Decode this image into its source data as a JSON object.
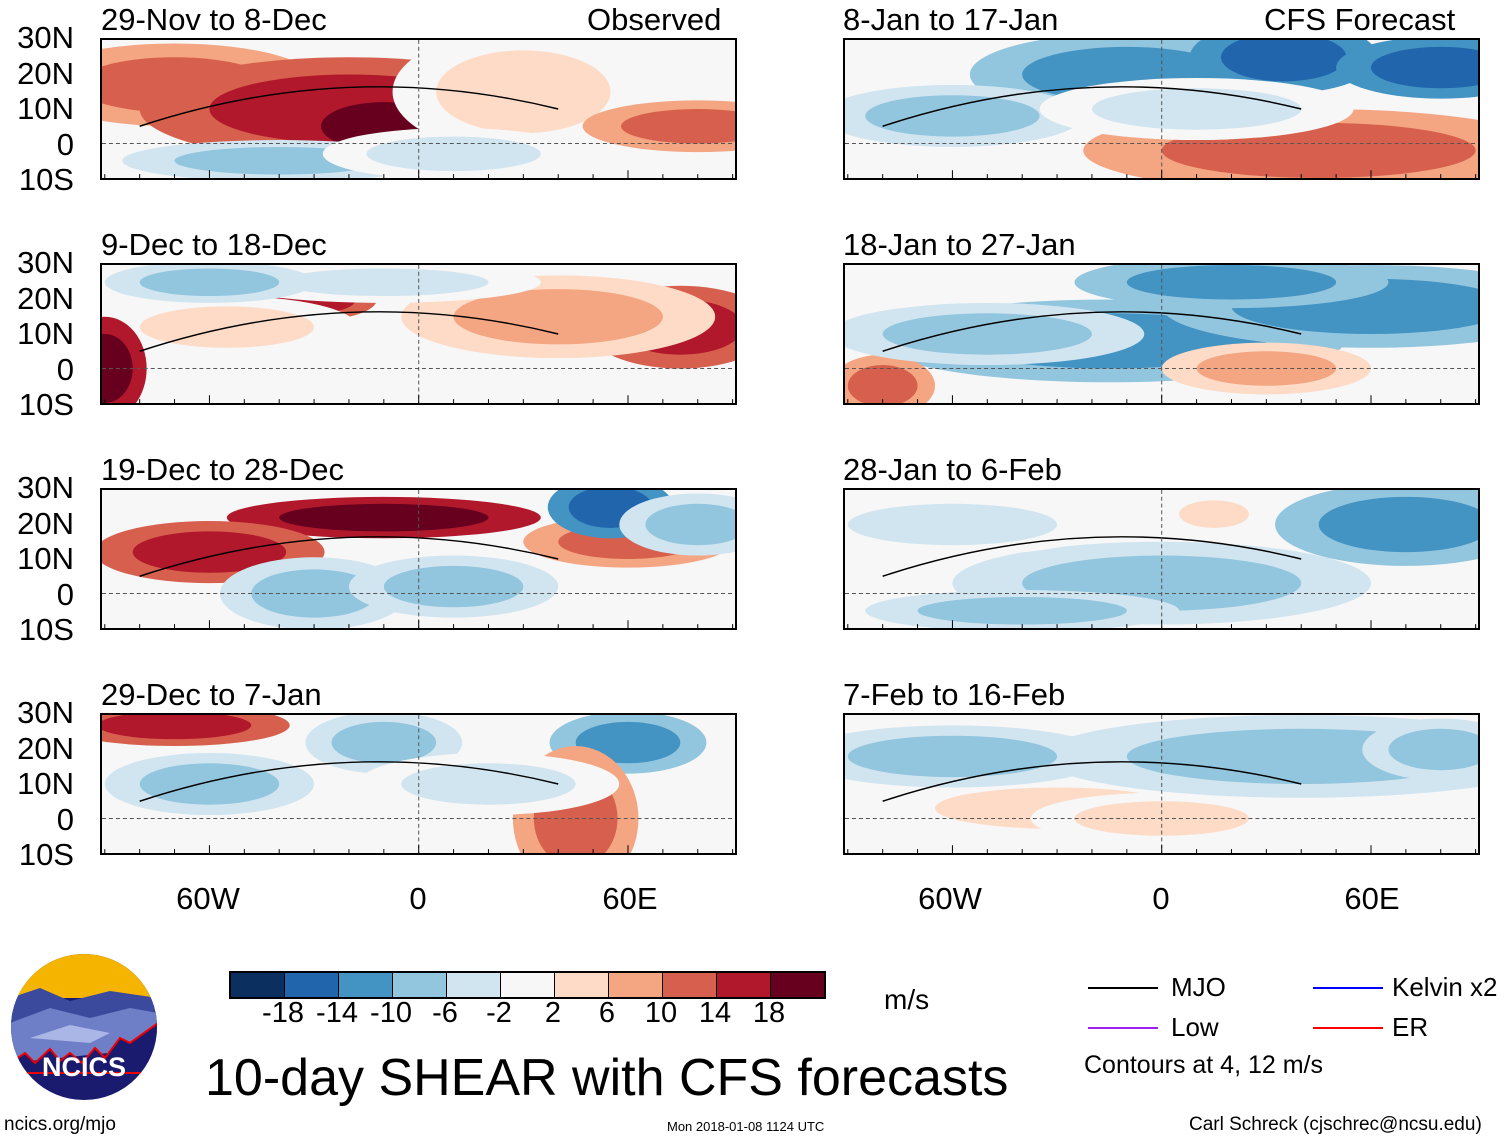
{
  "header": {
    "left_label": "Observed",
    "right_label": "CFS Forecast"
  },
  "panels_observed": [
    {
      "title": "29-Nov to 8-Dec"
    },
    {
      "title": "9-Dec to 18-Dec"
    },
    {
      "title": "19-Dec to 28-Dec"
    },
    {
      "title": "29-Dec to 7-Jan"
    }
  ],
  "panels_forecast": [
    {
      "title": "8-Jan to 17-Jan"
    },
    {
      "title": "18-Jan to 27-Jan"
    },
    {
      "title": "28-Jan to 6-Feb"
    },
    {
      "title": "7-Feb to 16-Feb"
    }
  ],
  "lat_labels": [
    "30N",
    "20N",
    "10N",
    "0",
    "10S"
  ],
  "lon_labels": [
    "60W",
    "0",
    "60E"
  ],
  "colorbar": {
    "colors": [
      "#0b2f5e",
      "#2166ac",
      "#4393c3",
      "#92c5de",
      "#d1e5f0",
      "#f7f7f7",
      "#fddbc7",
      "#f4a582",
      "#d6604d",
      "#b2182b",
      "#67001f"
    ],
    "ticks": [
      "-18",
      "-14",
      "-10",
      "-6",
      "-2",
      "2",
      "6",
      "10",
      "14",
      "18"
    ],
    "units": "m/s"
  },
  "legend": {
    "items": [
      {
        "label": "MJO",
        "color": "#000000"
      },
      {
        "label": "Kelvin x2",
        "color": "#0000ff"
      },
      {
        "label": "Low",
        "color": "#a020f0"
      },
      {
        "label": "ER",
        "color": "#ff0000"
      }
    ],
    "note": "Contours at 4, 12 m/s"
  },
  "title": "10-day SHEAR with CFS forecasts",
  "logo_text": "NCICS",
  "footer": {
    "url": "ncics.org/mjo",
    "timestamp": "Mon 2018-01-08 1124 UTC",
    "credit": "Carl Schreck (cjschrec@ncsu.edu)"
  }
}
